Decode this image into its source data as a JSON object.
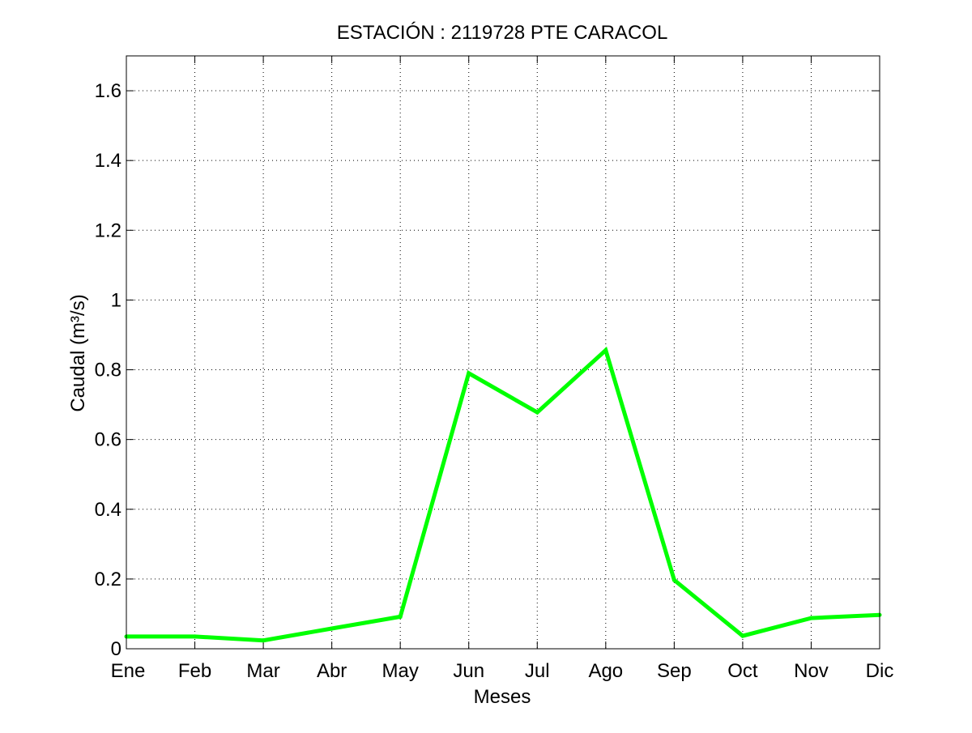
{
  "chart_data": {
    "type": "line",
    "title": "ESTACIÓN :  2119728  PTE CARACOL",
    "xlabel": "Meses",
    "ylabel": "Caudal (m³/s)",
    "categories": [
      "Ene",
      "Feb",
      "Mar",
      "Abr",
      "May",
      "Jun",
      "Jul",
      "Ago",
      "Sep",
      "Oct",
      "Nov",
      "Dic"
    ],
    "series": [
      {
        "values": [
          0.035,
          0.035,
          0.024,
          0.058,
          0.092,
          0.79,
          0.678,
          0.856,
          0.197,
          0.037,
          0.088,
          0.097
        ],
        "color": "#00ff00"
      }
    ],
    "ylim": [
      0,
      1.7
    ],
    "yticks": [
      0,
      0.2,
      0.4,
      0.6,
      0.8,
      1,
      1.2,
      1.4,
      1.6
    ],
    "ytick_labels": [
      "0",
      "0.2",
      "0.4",
      "0.6",
      "0.8",
      "1",
      "1.2",
      "1.4",
      "1.6"
    ],
    "grid": true,
    "grid_style": "dotted",
    "legend": "none"
  }
}
